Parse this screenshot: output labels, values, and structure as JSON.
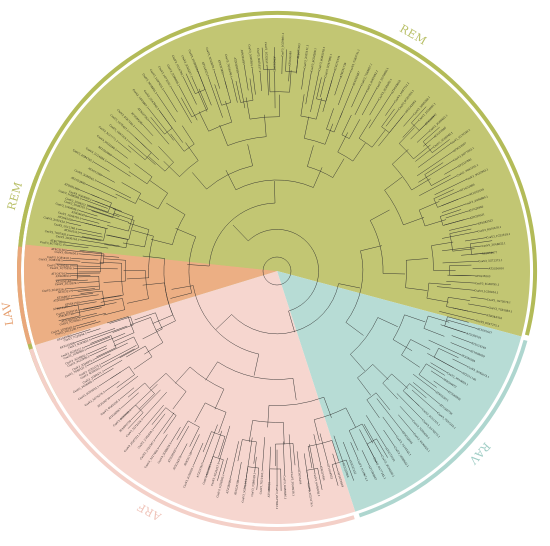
{
  "figure": {
    "type": "circular-phylogenetic-tree",
    "background": "#ffffff",
    "branch_color": "#2b2b2b"
  },
  "clades": [
    {
      "id": "rem-large",
      "label": "REM",
      "fill": "#c2c673",
      "ring": "#b3bb58",
      "label_color": "#b8bf66"
    },
    {
      "id": "rav",
      "label": "RAV",
      "fill": "#b7dcd5",
      "ring": "#aed6cf",
      "label_color": "#9fcdc5"
    },
    {
      "id": "arf",
      "label": "ARF",
      "fill": "#f6d6cf",
      "ring": "#f4d0c8",
      "label_color": "#f0c4ba"
    },
    {
      "id": "lav",
      "label": "LAV",
      "fill": "#ecaf84",
      "ring": "#e9a77a",
      "label_color": "#e6a070"
    },
    {
      "id": "rem-small",
      "label": "REM",
      "fill": "#c2c673",
      "ring": "#b3bb58",
      "label_color": "#b8bf66"
    }
  ],
  "leaf_label_prefixes": [
    "AT1G",
    "AT2G",
    "AT3G",
    "AT4G",
    "AT5G",
    "CsaV3_1G",
    "CsaV3_2G",
    "CsaV3_3G",
    "CsaV3_4G",
    "CsaV3_5G",
    "CsaV3_6G",
    "CsaV3_7G"
  ]
}
